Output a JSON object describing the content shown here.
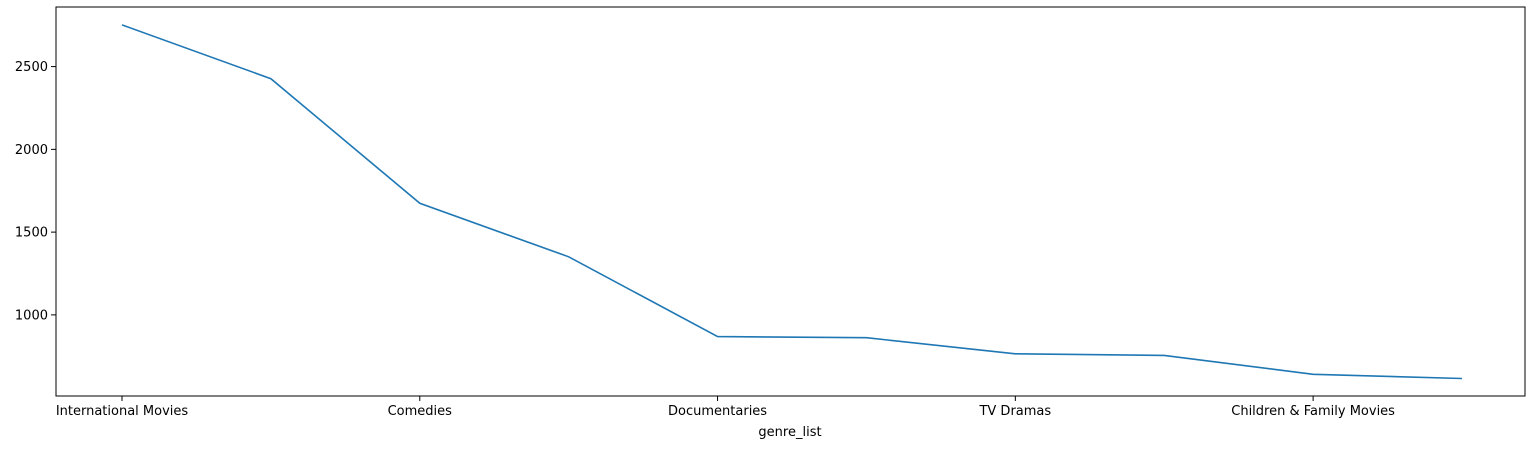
{
  "chart_data": {
    "type": "line",
    "categories": [
      "International Movies",
      "",
      "Comedies",
      "",
      "Documentaries",
      "",
      "TV Dramas",
      "",
      "Children & Family Movies",
      ""
    ],
    "x_tick_labels": [
      "International Movies",
      "Comedies",
      "Documentaries",
      "TV Dramas",
      "Children & Family Movies"
    ],
    "x_tick_positions": [
      0,
      2,
      4,
      6,
      8
    ],
    "values": [
      2752,
      2427,
      1674,
      1351,
      869,
      862,
      765,
      755,
      641,
      616
    ],
    "y_ticks": [
      1000,
      1500,
      2000,
      2500
    ],
    "ylim": [
      510,
      2860
    ],
    "xlabel": "genre_list",
    "ylabel": "",
    "title": "",
    "grid": false,
    "legend": "none",
    "line_color": "#1f77b4"
  }
}
